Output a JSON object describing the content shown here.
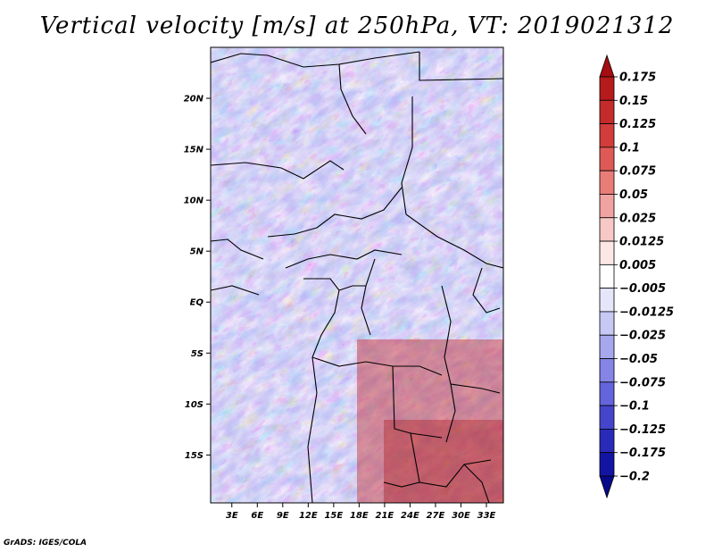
{
  "title": "Vertical velocity [m/s] at 250hPa, VT: 2019021312",
  "footer": "GrADS: IGES/COLA",
  "map": {
    "lat_ticks": [
      {
        "label": "20N",
        "value": 20
      },
      {
        "label": "15N",
        "value": 15
      },
      {
        "label": "10N",
        "value": 10
      },
      {
        "label": "5N",
        "value": 5
      },
      {
        "label": "EQ",
        "value": 0
      },
      {
        "label": "5S",
        "value": -5
      },
      {
        "label": "10S",
        "value": -10
      },
      {
        "label": "15S",
        "value": -15
      }
    ],
    "lon_ticks": [
      {
        "label": "3E",
        "value": 3
      },
      {
        "label": "6E",
        "value": 6
      },
      {
        "label": "9E",
        "value": 9
      },
      {
        "label": "12E",
        "value": 12
      },
      {
        "label": "15E",
        "value": 15
      },
      {
        "label": "18E",
        "value": 18
      },
      {
        "label": "21E",
        "value": 21
      },
      {
        "label": "24E",
        "value": 24
      },
      {
        "label": "27E",
        "value": 27
      },
      {
        "label": "30E",
        "value": 30
      },
      {
        "label": "33E",
        "value": 33
      }
    ],
    "lon_range": [
      0.5,
      35.0
    ],
    "lat_range": [
      -19.7,
      25.0
    ]
  },
  "colorbar": {
    "levels": [
      "0.175",
      "0.15",
      "0.125",
      "0.1",
      "0.075",
      "0.05",
      "0.025",
      "0.0125",
      "0.005",
      "−0.005",
      "−0.0125",
      "−0.025",
      "−0.05",
      "−0.075",
      "−0.1",
      "−0.125",
      "−0.175",
      "−0.2"
    ],
    "colors": [
      "#a50d10",
      "#b51a1c",
      "#c42b2b",
      "#d23c3a",
      "#df5a56",
      "#e87d78",
      "#f0a3a0",
      "#f6c8c6",
      "#fbe7e6",
      "#ffffff",
      "#e6e6fb",
      "#c8c8f5",
      "#a7a7ee",
      "#8585e6",
      "#6464dc",
      "#4545cc",
      "#2a2ab8",
      "#1414a2",
      "#08088a"
    ]
  }
}
